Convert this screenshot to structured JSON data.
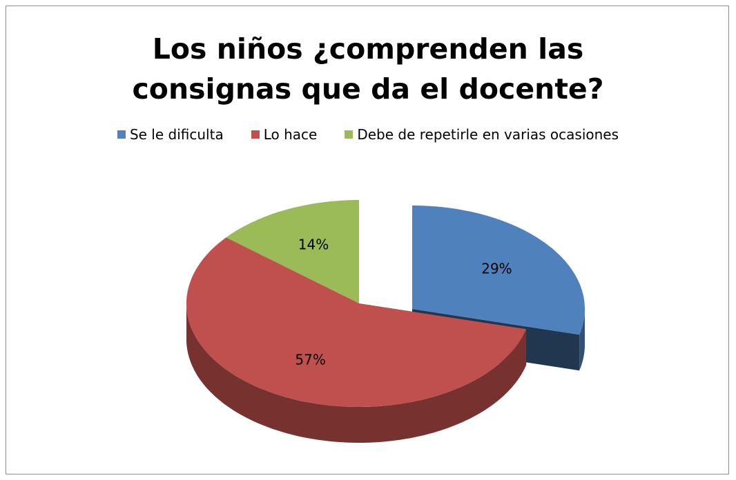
{
  "chart_data": {
    "type": "pie",
    "title": "Los niños ¿comprenden las consignas que da el docente?",
    "categories": [
      "Se le dificulta",
      "Lo hace",
      "Debe de repetirle en varias ocasiones"
    ],
    "values": [
      29,
      57,
      14
    ],
    "value_labels": [
      "29%",
      "57%",
      "14%"
    ],
    "colors": [
      "#4f81bd",
      "#c0504d",
      "#9bbb59"
    ],
    "legend": "top"
  }
}
